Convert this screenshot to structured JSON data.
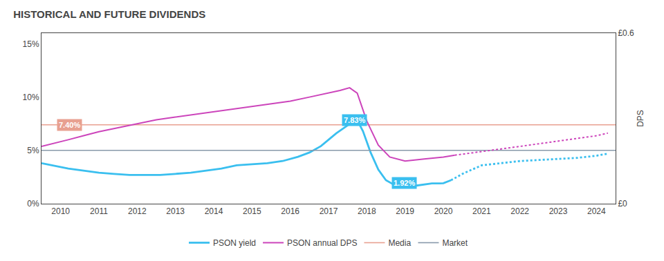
{
  "chart_data": {
    "type": "line",
    "title": "HISTORICAL AND FUTURE DIVIDENDS",
    "xlim": [
      2009.5,
      2024.5
    ],
    "xticks": [
      2010,
      2011,
      2012,
      2013,
      2014,
      2015,
      2016,
      2017,
      2018,
      2019,
      2020,
      2021,
      2022,
      2023,
      2024
    ],
    "ylim": [
      0,
      0.16
    ],
    "yticks": [
      {
        "value": 0.0,
        "label": "0%"
      },
      {
        "value": 0.05,
        "label": "5%"
      },
      {
        "value": 0.1,
        "label": "10%"
      },
      {
        "value": 0.15,
        "label": "15%"
      }
    ],
    "y2lim": [
      0,
      0.64
    ],
    "y2ticks": [
      {
        "value": 0.0,
        "label": "£0"
      },
      {
        "value": 0.64,
        "label": "£0.6"
      }
    ],
    "y2label": "DPS",
    "grid": false,
    "legend": "bottom",
    "series": [
      {
        "name": "PSON yield",
        "color": "#3abfef",
        "line_style": "solid",
        "x": [
          2009.5,
          2009.8,
          2010.2,
          2010.6,
          2011.0,
          2011.4,
          2011.8,
          2012.2,
          2012.6,
          2013.0,
          2013.4,
          2013.8,
          2014.2,
          2014.6,
          2015.0,
          2015.4,
          2015.8,
          2016.2,
          2016.5,
          2016.8,
          2017.0,
          2017.2,
          2017.4,
          2017.6,
          2017.75,
          2017.9,
          2018.1,
          2018.3,
          2018.5,
          2018.7,
          2018.9,
          2019.1,
          2019.3,
          2019.5,
          2019.7,
          2019.9,
          2020.0,
          2020.2
        ],
        "values": [
          0.038,
          0.036,
          0.033,
          0.031,
          0.029,
          0.028,
          0.027,
          0.027,
          0.027,
          0.028,
          0.029,
          0.031,
          0.033,
          0.036,
          0.037,
          0.038,
          0.04,
          0.044,
          0.048,
          0.054,
          0.06,
          0.066,
          0.071,
          0.076,
          0.0783,
          0.068,
          0.048,
          0.032,
          0.022,
          0.018,
          0.016,
          0.016,
          0.017,
          0.018,
          0.019,
          0.019,
          0.0192,
          0.022
        ]
      },
      {
        "color": "#3abfef",
        "line_style": "dotted",
        "x": [
          2020.2,
          2020.5,
          2021.0,
          2021.5,
          2022.0,
          2022.5,
          2023.0,
          2023.5,
          2024.0,
          2024.3
        ],
        "values": [
          0.022,
          0.028,
          0.036,
          0.038,
          0.04,
          0.041,
          0.042,
          0.043,
          0.045,
          0.047
        ]
      },
      {
        "name": "PSON annual DPS",
        "axis": "y2",
        "color": "#cc44bb",
        "line_style": "solid",
        "x": [
          2009.5,
          2009.8,
          2010.2,
          2010.6,
          2011.0,
          2011.5,
          2012.0,
          2012.5,
          2013.0,
          2013.5,
          2014.0,
          2014.5,
          2015.0,
          2015.5,
          2016.0,
          2016.5,
          2017.0,
          2017.3,
          2017.55,
          2017.75,
          2018.0,
          2018.3,
          2018.6,
          2019.0,
          2019.5,
          2020.0,
          2020.3
        ],
        "values": [
          0.215,
          0.225,
          0.24,
          0.255,
          0.27,
          0.285,
          0.3,
          0.315,
          0.325,
          0.335,
          0.345,
          0.355,
          0.365,
          0.375,
          0.385,
          0.4,
          0.415,
          0.425,
          0.435,
          0.415,
          0.31,
          0.22,
          0.175,
          0.16,
          0.168,
          0.175,
          0.182
        ]
      },
      {
        "axis": "y2",
        "color": "#cc44bb",
        "line_style": "dotted",
        "x": [
          2020.3,
          2021.0,
          2021.5,
          2022.0,
          2022.5,
          2023.0,
          2023.5,
          2024.0,
          2024.3
        ],
        "values": [
          0.182,
          0.195,
          0.205,
          0.215,
          0.225,
          0.235,
          0.245,
          0.255,
          0.265
        ]
      },
      {
        "name": "Media",
        "type": "hline",
        "color": "#e8a090",
        "values": [
          0.074
        ]
      },
      {
        "name": "Market",
        "type": "hline",
        "color": "#8899aa",
        "values": [
          0.05
        ]
      }
    ],
    "annotations": [
      {
        "text": "7.40%",
        "x": 2009.9,
        "y": 0.074,
        "color": "#e8a090"
      },
      {
        "text": "7.83%",
        "x": 2017.35,
        "y": 0.0783,
        "color": "#3abfef"
      },
      {
        "text": "1.92%",
        "x": 2018.65,
        "y": 0.0192,
        "color": "#3abfef"
      }
    ]
  }
}
